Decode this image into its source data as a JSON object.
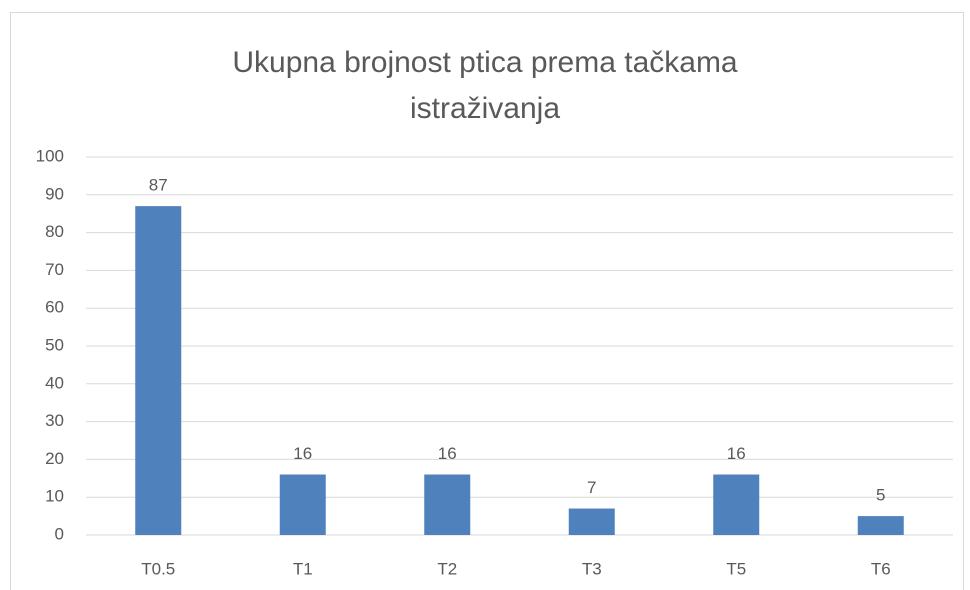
{
  "chart_data": {
    "type": "bar",
    "title": "Ukupna brojnost ptica prema tačkama istraživanja",
    "categories": [
      "T0.5",
      "T1",
      "T2",
      "T3",
      "T5",
      "T6"
    ],
    "values": [
      87,
      16,
      16,
      7,
      16,
      5
    ],
    "color": "#4f81bd",
    "ylim": [
      0,
      100
    ],
    "yticks": [
      0,
      10,
      20,
      30,
      40,
      50,
      60,
      70,
      80,
      90,
      100
    ],
    "grid": true
  }
}
